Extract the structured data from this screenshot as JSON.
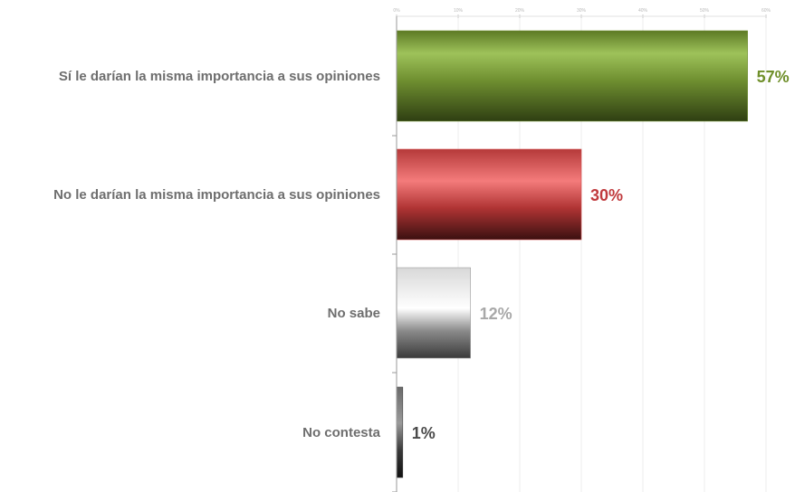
{
  "chart_data": {
    "type": "bar",
    "orientation": "horizontal",
    "categories": [
      "Sí le darían la misma importancia a sus opiniones",
      "No le darían la misma importancia a sus opiniones",
      "No sabe",
      "No contesta"
    ],
    "values": [
      57,
      30,
      12,
      1
    ],
    "value_labels": [
      "57%",
      "30%",
      "12%",
      "1%"
    ],
    "xlim": [
      0,
      60
    ],
    "x_ticks": [
      0,
      10,
      20,
      30,
      40,
      50,
      60
    ],
    "x_tick_labels": [
      "0%",
      "10%",
      "20%",
      "30%",
      "40%",
      "50%",
      "60%"
    ],
    "grid": true,
    "legend": "none",
    "bar_colors": [
      "#6b8a2c",
      "#d14a4a",
      "#9a9a9a",
      "#444444"
    ],
    "label_colors": [
      "#6f8f2a",
      "#c0393c",
      "#a8a8a8",
      "#4a4a4a"
    ]
  }
}
